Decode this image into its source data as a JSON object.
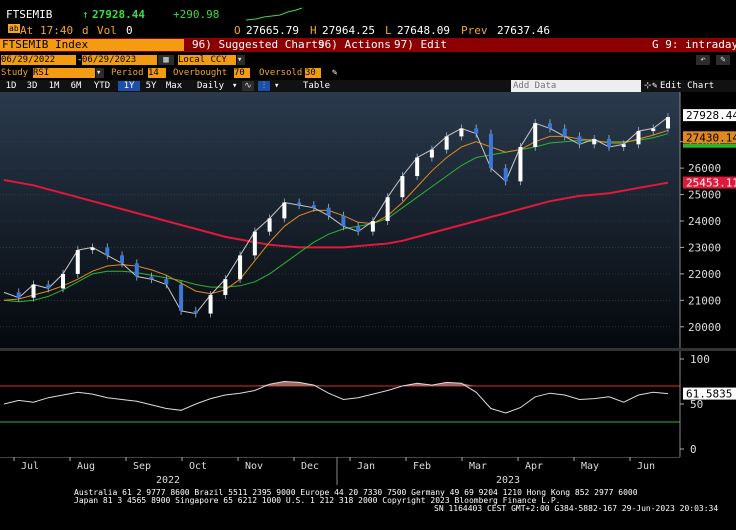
{
  "ticker": {
    "symbol": "FTSEMIB",
    "arrow": "↑",
    "last": "27928.44",
    "change": "+290.98",
    "time_prefix": "At",
    "time": "17:40",
    "d": "d",
    "vol_label": "Vol",
    "vol": "0",
    "open_label": "O",
    "open": "27665.79",
    "high_label": "H",
    "high": "27964.25",
    "low_label": "L",
    "low": "27648.09",
    "prev_label": "Prev",
    "prev": "27637.46"
  },
  "menubar": {
    "security": "FTSEMIB Index",
    "suggested": "96) Suggested Charts",
    "actions": "96) Actions",
    "edit": "97) Edit",
    "func": "G 9: intraday"
  },
  "toolbar1": {
    "start_date": "06/29/2022",
    "end_date": "06/29/2023",
    "currency": "Local CCY"
  },
  "toolbar2": {
    "study_label": "Study",
    "study_value": "RSI",
    "period_label": "Period",
    "period_value": "14",
    "overbought_label": "Overbought",
    "overbought_value": "70",
    "oversold_label": "Oversold",
    "oversold_value": "30"
  },
  "toolbar3": {
    "ranges": [
      "1D",
      "3D",
      "1M",
      "6M",
      "YTD",
      "1Y",
      "5Y",
      "Max"
    ],
    "selected_range": "1Y",
    "frequency": "Daily",
    "table": "Table",
    "add_data_placeholder": "Add Data",
    "edit_chart": "Edit Chart"
  },
  "chart_data": [
    {
      "type": "line",
      "title": "",
      "ylim": [
        19500,
        28500
      ],
      "yticks": [
        "20000",
        "21000",
        "22000",
        "23000",
        "24000",
        "25000",
        "26000",
        "27000"
      ],
      "price_label": "27928.44",
      "ma_fast_label": "27430.14",
      "ma_mid_label": "",
      "ma_slow_label": "25453.11",
      "colors": {
        "price": "#c8c8c8",
        "ma_fast": "#e08a1e",
        "ma_mid": "#2fb32f",
        "ma_slow": "#e0183c"
      },
      "series": [
        {
          "values": [
            21300,
            21100,
            21600,
            21450,
            22000,
            22900,
            23000,
            22700,
            22400,
            21900,
            21800,
            21600,
            20600,
            20500,
            21200,
            21800,
            22700,
            23600,
            24100,
            24700,
            24600,
            24500,
            24200,
            23800,
            23600,
            24000,
            24900,
            25700,
            26400,
            26700,
            27200,
            27500,
            27300,
            26000,
            25500,
            26800,
            27700,
            27500,
            27200,
            26900,
            27100,
            26800,
            26900,
            27400,
            27500,
            27928
          ]
        },
        {
          "values": [
            21000,
            21050,
            21200,
            21350,
            21550,
            21800,
            22100,
            22300,
            22350,
            22300,
            22150,
            21950,
            21650,
            21350,
            21250,
            21400,
            21800,
            22500,
            23200,
            23800,
            24200,
            24400,
            24400,
            24200,
            23950,
            23900,
            24200,
            24700,
            25300,
            25900,
            26400,
            26800,
            27000,
            26800,
            26600,
            26700,
            27000,
            27200,
            27200,
            27100,
            27050,
            26950,
            26950,
            27100,
            27250,
            27430
          ]
        },
        {
          "values": [
            21000,
            20950,
            21000,
            21150,
            21400,
            21700,
            22000,
            22100,
            22100,
            22050,
            21950,
            21850,
            21750,
            21600,
            21500,
            21500,
            21550,
            21700,
            22000,
            22400,
            22800,
            23200,
            23500,
            23700,
            23800,
            23900,
            24100,
            24500,
            24900,
            25300,
            25700,
            26100,
            26400,
            26500,
            26600,
            26700,
            26800,
            26950,
            27000,
            27050,
            27000,
            27000,
            27000,
            27050,
            27150,
            27300
          ]
        },
        {
          "values": [
            25550,
            25450,
            25350,
            25200,
            25050,
            24900,
            24750,
            24600,
            24450,
            24300,
            24150,
            24000,
            23850,
            23700,
            23550,
            23400,
            23300,
            23200,
            23100,
            23050,
            23000,
            23000,
            23000,
            23000,
            23050,
            23100,
            23150,
            23250,
            23400,
            23550,
            23700,
            23850,
            24000,
            24150,
            24300,
            24450,
            24600,
            24750,
            24850,
            24950,
            25000,
            25050,
            25150,
            25250,
            25350,
            25453
          ]
        }
      ]
    },
    {
      "type": "line",
      "title": "",
      "ylim": [
        0,
        100
      ],
      "yticks": [
        "0",
        "50",
        "100"
      ],
      "overbought": 70,
      "oversold": 30,
      "last_label": "61.5835",
      "colors": {
        "rsi": "#dcdcdc",
        "overbought": "#d32f2f",
        "oversold": "#2fb32f",
        "fill": "#b07070"
      },
      "series": [
        {
          "values": [
            50,
            54,
            52,
            57,
            60,
            63,
            61,
            57,
            55,
            53,
            49,
            45,
            43,
            50,
            56,
            60,
            62,
            65,
            72,
            75,
            74,
            71,
            62,
            55,
            57,
            61,
            65,
            70,
            73,
            71,
            74,
            73,
            63,
            45,
            40,
            46,
            58,
            62,
            60,
            55,
            56,
            58,
            52,
            60,
            63,
            61.58
          ]
        }
      ]
    }
  ],
  "xaxis": {
    "months": [
      "Jul",
      "Aug",
      "Sep",
      "Oct",
      "Nov",
      "Dec",
      "Jan",
      "Feb",
      "Mar",
      "Apr",
      "May",
      "Jun"
    ],
    "year1": "2022",
    "year2": "2023"
  },
  "footer": {
    "line1": "Australia 61 2 9777 8600 Brazil 5511 2395 9000 Europe 44 20 7330 7500 Germany 49 69 9204 1210 Hong Kong 852 2977 6000",
    "line2": "Japan 81 3 4565 8900        Singapore 65 6212 1000        U.S. 1 212 318 2000          Copyright 2023 Bloomberg Finance L.P.",
    "line3": "SN 1164403 CEST GMT+2:00 G384-5882-167 29-Jun-2023 20:03:34"
  }
}
